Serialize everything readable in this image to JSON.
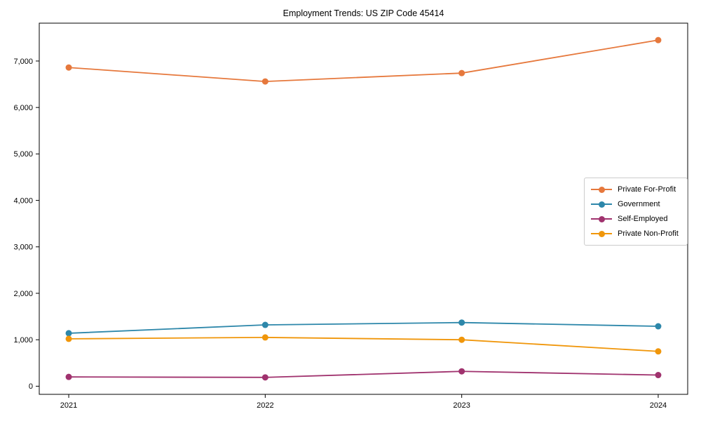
{
  "chart_data": {
    "type": "line",
    "title": "Employment Trends: US ZIP Code 45414",
    "x": [
      2021,
      2022,
      2023,
      2024
    ],
    "x_tick_labels": [
      "2021",
      "2022",
      "2023",
      "2024"
    ],
    "y_ticks": [
      0,
      1000,
      2000,
      3000,
      4000,
      5000,
      6000,
      7000
    ],
    "y_tick_labels": [
      "0",
      "1,000",
      "2,000",
      "3,000",
      "4,000",
      "5,000",
      "6,000",
      "7,000"
    ],
    "series": [
      {
        "name": "Private For-Profit",
        "color": "#E6783C",
        "values": [
          6860,
          6560,
          6740,
          7450
        ]
      },
      {
        "name": "Government",
        "color": "#2D87AA",
        "values": [
          1140,
          1320,
          1370,
          1290
        ]
      },
      {
        "name": "Self-Employed",
        "color": "#A0326E",
        "values": [
          200,
          190,
          320,
          240
        ]
      },
      {
        "name": "Private Non-Profit",
        "color": "#F0960A",
        "values": [
          1020,
          1050,
          1000,
          750
        ]
      }
    ],
    "xlim": [
      2020.85,
      2024.15
    ],
    "ylim": [
      -175,
      7815
    ],
    "grid": false,
    "legend_position": "center-right",
    "marker": "circle",
    "axis_color": "#000000"
  }
}
